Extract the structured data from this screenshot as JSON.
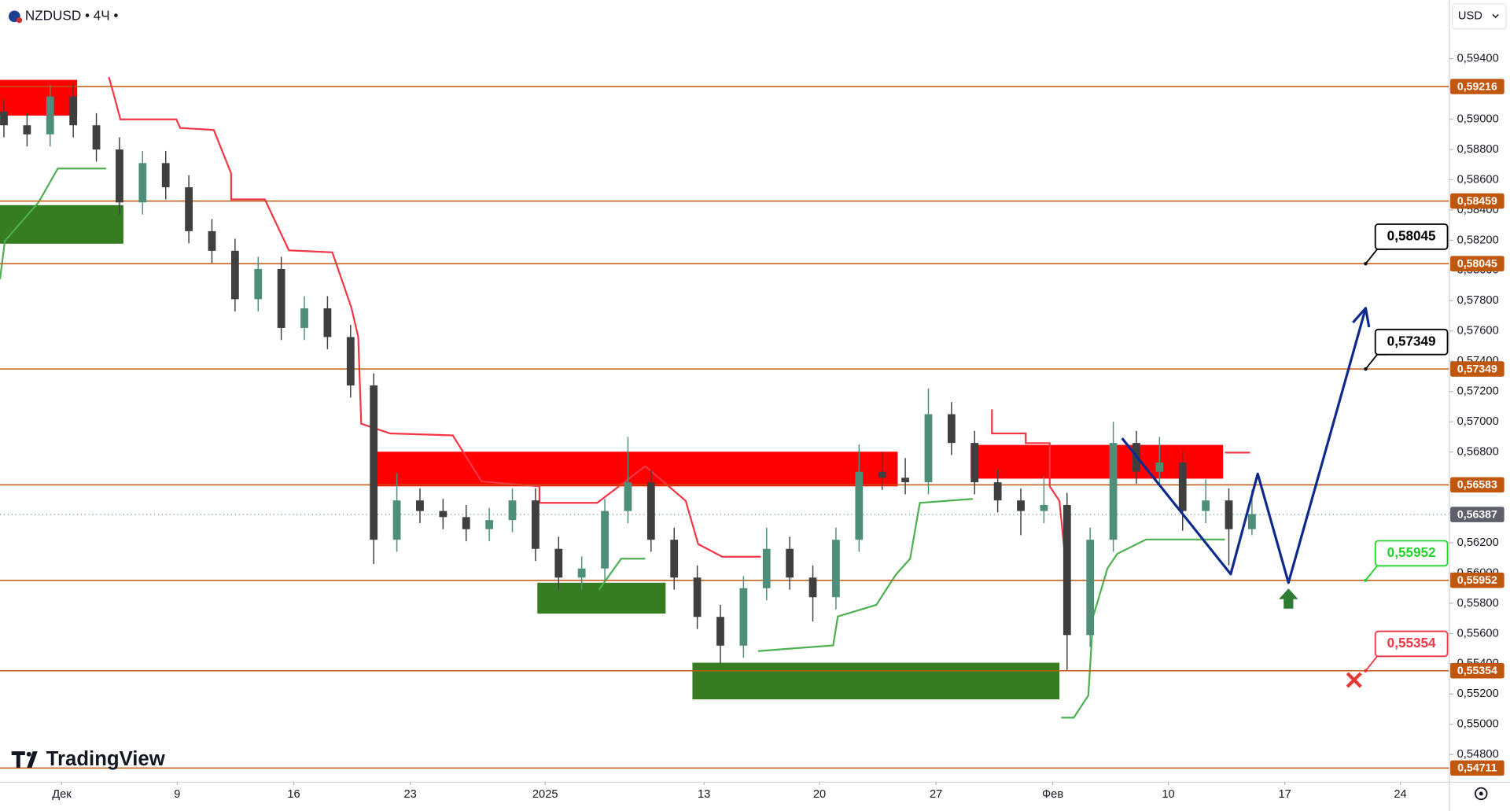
{
  "chart_data": {
    "type": "candlestick",
    "title": "NZDUSD • 4Ч •",
    "currency": "USD",
    "watermark": "TradingView",
    "xlim": [
      -0.17,
      62.54
    ],
    "ylim": [
      0.54618,
      0.59788
    ],
    "xticks": [
      {
        "value": 2.5,
        "label": "Дек"
      },
      {
        "value": 7.5,
        "label": "9"
      },
      {
        "value": 12.54,
        "label": "16"
      },
      {
        "value": 17.58,
        "label": "23"
      },
      {
        "value": 23.42,
        "label": "2025"
      },
      {
        "value": 30.29,
        "label": "13"
      },
      {
        "value": 35.29,
        "label": "20"
      },
      {
        "value": 40.33,
        "label": "27"
      },
      {
        "value": 45.38,
        "label": "Фев"
      },
      {
        "value": 50.38,
        "label": "10"
      },
      {
        "value": 55.42,
        "label": "17"
      },
      {
        "value": 60.42,
        "label": "24"
      }
    ],
    "yticks": [
      {
        "value": 0.548,
        "label": "0,54800"
      },
      {
        "value": 0.55,
        "label": "0,55000"
      },
      {
        "value": 0.552,
        "label": "0,55200"
      },
      {
        "value": 0.554,
        "label": "0,55400"
      },
      {
        "value": 0.556,
        "label": "0,55600"
      },
      {
        "value": 0.558,
        "label": "0,55800"
      },
      {
        "value": 0.56,
        "label": "0,56000"
      },
      {
        "value": 0.562,
        "label": "0,56200"
      },
      {
        "value": 0.564,
        "label": "0,56400"
      },
      {
        "value": 0.566,
        "label": "0,56600"
      },
      {
        "value": 0.568,
        "label": "0,56800"
      },
      {
        "value": 0.57,
        "label": "0,57000"
      },
      {
        "value": 0.572,
        "label": "0,57200"
      },
      {
        "value": 0.574,
        "label": "0,57400"
      },
      {
        "value": 0.576,
        "label": "0,57600"
      },
      {
        "value": 0.578,
        "label": "0,57800"
      },
      {
        "value": 0.58,
        "label": "0,58000"
      },
      {
        "value": 0.582,
        "label": "0,58200"
      },
      {
        "value": 0.584,
        "label": "0,58400"
      },
      {
        "value": 0.586,
        "label": "0,58600"
      },
      {
        "value": 0.588,
        "label": "0,58800"
      },
      {
        "value": 0.59,
        "label": "0,59000"
      },
      {
        "value": 0.592,
        "label": "0,59200"
      },
      {
        "value": 0.594,
        "label": "0,59400"
      }
    ],
    "up_color": "#4f8f7a",
    "down_color": "#3f3f3f",
    "x": [
      0,
      1,
      2,
      3,
      4,
      5,
      6,
      7,
      8,
      9,
      10,
      11,
      12,
      13,
      14,
      15,
      16,
      17,
      18,
      19,
      20,
      21,
      22,
      23,
      24,
      25,
      26,
      27,
      28,
      29,
      30,
      31,
      32,
      33,
      34,
      35,
      36,
      37,
      38,
      39,
      40,
      41,
      42,
      43,
      44,
      45,
      46,
      47,
      48,
      49,
      50,
      51,
      52,
      53,
      54
    ],
    "ohlc": [
      [
        0.5905,
        0.5913,
        0.5888,
        0.5896
      ],
      [
        0.5896,
        0.5904,
        0.5882,
        0.589
      ],
      [
        0.589,
        0.5923,
        0.5882,
        0.5915
      ],
      [
        0.5915,
        0.5923,
        0.5888,
        0.5896
      ],
      [
        0.5896,
        0.5904,
        0.5872,
        0.588
      ],
      [
        0.588,
        0.5888,
        0.5837,
        0.5845
      ],
      [
        0.5845,
        0.5879,
        0.5837,
        0.5871
      ],
      [
        0.5871,
        0.5879,
        0.5847,
        0.5855
      ],
      [
        0.5855,
        0.5863,
        0.5818,
        0.5826
      ],
      [
        0.5826,
        0.5834,
        0.5805,
        0.5813
      ],
      [
        0.5813,
        0.5821,
        0.5773,
        0.5781
      ],
      [
        0.5781,
        0.5809,
        0.5773,
        0.5801
      ],
      [
        0.5801,
        0.5809,
        0.5754,
        0.5762
      ],
      [
        0.5762,
        0.5783,
        0.5754,
        0.5775
      ],
      [
        0.5775,
        0.5783,
        0.5748,
        0.5756
      ],
      [
        0.5756,
        0.5764,
        0.5716,
        0.5724
      ],
      [
        0.5724,
        0.5732,
        0.5606,
        0.5622
      ],
      [
        0.5622,
        0.5666,
        0.5614,
        0.5648
      ],
      [
        0.5648,
        0.5656,
        0.5633,
        0.5641
      ],
      [
        0.5641,
        0.5649,
        0.5629,
        0.5637
      ],
      [
        0.5637,
        0.5645,
        0.5621,
        0.5629
      ],
      [
        0.5629,
        0.5643,
        0.5621,
        0.5635
      ],
      [
        0.5635,
        0.5656,
        0.5627,
        0.5648
      ],
      [
        0.5648,
        0.5656,
        0.5608,
        0.5616
      ],
      [
        0.5616,
        0.5624,
        0.5589,
        0.5597
      ],
      [
        0.5597,
        0.5611,
        0.5589,
        0.5603
      ],
      [
        0.5603,
        0.5649,
        0.5595,
        0.5641
      ],
      [
        0.5641,
        0.569,
        0.5633,
        0.566
      ],
      [
        0.566,
        0.5668,
        0.5614,
        0.5622
      ],
      [
        0.5622,
        0.563,
        0.5589,
        0.5597
      ],
      [
        0.5597,
        0.5605,
        0.5563,
        0.5571
      ],
      [
        0.5571,
        0.5579,
        0.554,
        0.5552
      ],
      [
        0.5552,
        0.5598,
        0.5544,
        0.559
      ],
      [
        0.559,
        0.563,
        0.5582,
        0.5616
      ],
      [
        0.5616,
        0.5624,
        0.5589,
        0.5597
      ],
      [
        0.5597,
        0.5605,
        0.5568,
        0.5584
      ],
      [
        0.5584,
        0.563,
        0.5576,
        0.5622
      ],
      [
        0.5622,
        0.5685,
        0.5614,
        0.5667
      ],
      [
        0.5667,
        0.568,
        0.5655,
        0.5663
      ],
      [
        0.5663,
        0.5676,
        0.5652,
        0.566
      ],
      [
        0.566,
        0.5722,
        0.5652,
        0.5705
      ],
      [
        0.5705,
        0.5713,
        0.5678,
        0.5686
      ],
      [
        0.5686,
        0.5694,
        0.5652,
        0.566
      ],
      [
        0.566,
        0.5668,
        0.564,
        0.5648
      ],
      [
        0.5648,
        0.5656,
        0.5625,
        0.5641
      ],
      [
        0.5641,
        0.5664,
        0.5633,
        0.5645
      ],
      [
        0.5645,
        0.5653,
        0.5536,
        0.5559
      ],
      [
        0.5559,
        0.563,
        0.5551,
        0.5622
      ],
      [
        0.5622,
        0.57,
        0.5614,
        0.5686
      ],
      [
        0.5686,
        0.5694,
        0.5659,
        0.5667
      ],
      [
        0.5667,
        0.569,
        0.5659,
        0.5673
      ],
      [
        0.5673,
        0.5681,
        0.5628,
        0.5641
      ],
      [
        0.5641,
        0.5662,
        0.5633,
        0.5648
      ],
      [
        0.5648,
        0.5656,
        0.5605,
        0.5629
      ],
      [
        0.5629,
        0.5655,
        0.5625,
        0.5639
      ]
    ],
    "zones": [
      {
        "x0": -0.17,
        "x1": 3.17,
        "y0": 0.59024,
        "y1": 0.5926,
        "color": "#ff0000"
      },
      {
        "x0": 15.92,
        "x1": 38.67,
        "y0": 0.56573,
        "y1": 0.56802,
        "color": "#ff0000"
      },
      {
        "x0": 41.83,
        "x1": 52.75,
        "y0": 0.56624,
        "y1": 0.56847,
        "color": "#ff0000"
      },
      {
        "x0": -0.17,
        "x1": 5.17,
        "y0": 0.58177,
        "y1": 0.58432,
        "color": "#367c21"
      },
      {
        "x0": 23.08,
        "x1": 28.63,
        "y0": 0.55732,
        "y1": 0.55936,
        "color": "#367c21"
      },
      {
        "x0": 29.79,
        "x1": 45.67,
        "y0": 0.55165,
        "y1": 0.55407,
        "color": "#367c21"
      }
    ],
    "supertrend": [
      {
        "color": "#f23645",
        "x": [
          4.54,
          4.75,
          5.04,
          7.46,
          7.63,
          9.08,
          9.83,
          9.83,
          11.29,
          12.33,
          14.21,
          15.04,
          15.33,
          15.46,
          16.71,
          19.42,
          20.67,
          23.17,
          23.17,
          25.67,
          27.75,
          29.5,
          30.04,
          31.08,
          32.75,
          null,
          42.75,
          42.75,
          44.21,
          44.21,
          45.25,
          45.25,
          45.67,
          46,
          null,
          52.83,
          53.92
        ],
        "values": [
          0.59279,
          0.59164,
          0.58999,
          0.58999,
          0.58942,
          0.58929,
          0.58642,
          0.5847,
          0.5847,
          0.58133,
          0.5812,
          0.57751,
          0.5756,
          0.56987,
          0.56923,
          0.5691,
          0.56605,
          0.56573,
          0.56464,
          0.56464,
          0.56706,
          0.56477,
          0.56191,
          0.56108,
          0.56108,
          null,
          0.57082,
          0.56923,
          0.56923,
          0.56859,
          0.56859,
          0.56573,
          0.56477,
          0.55968,
          null,
          0.56796,
          0.56796
        ]
      },
      {
        "color": "#4caf50",
        "x": [
          -0.17,
          0.04,
          1.5,
          2.33,
          4.42,
          null,
          25.75,
          26.71,
          27.75,
          null,
          32.63,
          35.88,
          36.08,
          37.75,
          38.58,
          39.21,
          39.63,
          41.92,
          null,
          45.75,
          46.29,
          46.92,
          47.13,
          47.75,
          48.17,
          49.42,
          52.83
        ],
        "values": [
          0.57942,
          0.58196,
          0.58451,
          0.58674,
          0.58674,
          null,
          0.55891,
          0.56095,
          0.56095,
          null,
          0.55484,
          0.55522,
          0.55713,
          0.5579,
          0.55987,
          0.56095,
          0.56464,
          0.5649,
          null,
          0.55044,
          0.55044,
          0.55191,
          0.55713,
          0.56031,
          0.56127,
          0.56222,
          0.56222
        ]
      }
    ],
    "level_color": "#c0570e",
    "levels": [
      {
        "value": 0.59216,
        "label": "0,59216"
      },
      {
        "value": 0.58459,
        "label": "0,58459"
      },
      {
        "value": 0.58045,
        "label": "0,58045"
      },
      {
        "value": 0.57349,
        "label": "0,57349"
      },
      {
        "value": 0.56583,
        "label": "0,56583"
      },
      {
        "value": 0.55952,
        "label": "0,55952"
      },
      {
        "value": 0.55354,
        "label": "0,55354"
      },
      {
        "value": 0.54711,
        "label": "0,54711"
      }
    ],
    "last_price": {
      "value": 0.56387,
      "label": "0,56387",
      "color": "#5d606b"
    },
    "callouts": [
      {
        "x": 58.92,
        "value": 0.58045,
        "label": "0,58045",
        "color": "#000000"
      },
      {
        "x": 58.92,
        "value": 0.57349,
        "label": "0,57349",
        "color": "#000000"
      },
      {
        "x": 58.92,
        "value": 0.55952,
        "label": "0,55952",
        "color": "#22d32a"
      },
      {
        "x": 58.92,
        "value": 0.55354,
        "label": "0,55354",
        "color": "#f23645"
      }
    ],
    "projection": {
      "color": "#0d2a8c",
      "x": [
        48.38,
        53.08,
        54.25,
        55.58,
        58.92
      ],
      "values": [
        0.56891,
        0.55993,
        0.56656,
        0.55936,
        0.57751
      ]
    },
    "markers": [
      {
        "type": "up-arrow",
        "x": 55.58,
        "y": 0.55828,
        "color": "#2e7d32"
      },
      {
        "type": "cross",
        "x": 58.42,
        "y": 0.55293,
        "color": "#e53935"
      }
    ]
  }
}
